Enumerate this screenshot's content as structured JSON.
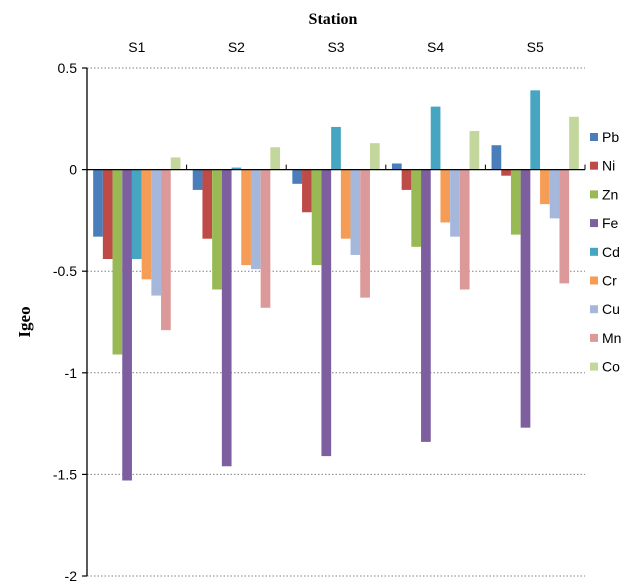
{
  "chart_data": {
    "type": "bar",
    "title": "Station",
    "xlabel": "",
    "ylabel": "Igeo",
    "ylim": [
      -2,
      0.5
    ],
    "yticks": [
      0.5,
      0,
      -0.5,
      -1,
      -1.5,
      -2
    ],
    "ytick_labels": [
      "0.5",
      "0",
      "-0.5",
      "-1",
      "-1.5",
      "-2"
    ],
    "categories": [
      "S1",
      "S2",
      "S3",
      "S4",
      "S5"
    ],
    "category_axis_position": "top",
    "grid": "horizontal-dotted",
    "legend_position": "right",
    "series": [
      {
        "name": "Pb",
        "color": "#4a7ebb",
        "values": [
          -0.33,
          -0.1,
          -0.07,
          0.03,
          0.12
        ]
      },
      {
        "name": "Ni",
        "color": "#be4b48",
        "values": [
          -0.44,
          -0.34,
          -0.21,
          -0.1,
          -0.03
        ]
      },
      {
        "name": "Zn",
        "color": "#98b954",
        "values": [
          -0.91,
          -0.59,
          -0.47,
          -0.38,
          -0.32
        ]
      },
      {
        "name": "Fe",
        "color": "#7d5fa0",
        "values": [
          -1.53,
          -1.46,
          -1.41,
          -1.34,
          -1.27
        ]
      },
      {
        "name": "Cd",
        "color": "#46a5c1",
        "values": [
          -0.44,
          0.01,
          0.21,
          0.31,
          0.39
        ]
      },
      {
        "name": "Cr",
        "color": "#f59d56",
        "values": [
          -0.54,
          -0.47,
          -0.34,
          -0.26,
          -0.17
        ]
      },
      {
        "name": "Cu",
        "color": "#a5b8dc",
        "values": [
          -0.62,
          -0.49,
          -0.42,
          -0.33,
          -0.24
        ]
      },
      {
        "name": "Mn",
        "color": "#db9a99",
        "values": [
          -0.79,
          -0.68,
          -0.63,
          -0.59,
          -0.56
        ]
      },
      {
        "name": "Co",
        "color": "#c3d69b",
        "values": [
          0.06,
          0.11,
          0.13,
          0.19,
          0.26
        ]
      }
    ]
  }
}
